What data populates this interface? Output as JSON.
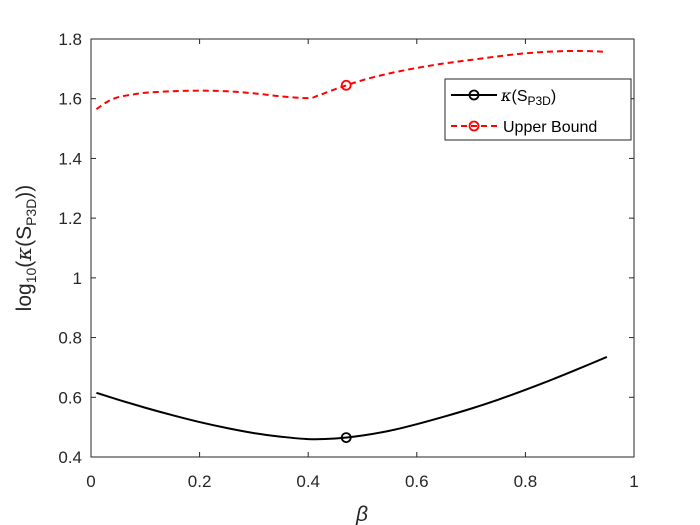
{
  "chart_data": {
    "type": "line",
    "xlabel": "β",
    "ylabel": {
      "prefix": "log",
      "prefix_sub": "10",
      "open": "(",
      "kappa": "κ",
      "inner_open": "(S",
      "inner_sub": "P3D",
      "close": "))"
    },
    "xlim": [
      0,
      1
    ],
    "ylim": [
      0.4,
      1.8
    ],
    "x_ticks": [
      0,
      0.2,
      0.4,
      0.6,
      0.8,
      1
    ],
    "x_tick_labels": [
      "0",
      "0.2",
      "0.4",
      "0.6",
      "0.8",
      "1"
    ],
    "y_ticks": [
      0.4,
      0.6,
      0.8,
      1.0,
      1.2,
      1.4,
      1.6,
      1.8
    ],
    "y_tick_labels": [
      "0.4",
      "0.6",
      "0.8",
      "1",
      "1.2",
      "1.4",
      "1.6",
      "1.8"
    ],
    "grid": false,
    "legend_position": "top-right",
    "series": [
      {
        "key": "kappa",
        "legend": {
          "kappa": "κ",
          "open": "(S",
          "sub": "P3D",
          "close": ")"
        },
        "color": "#000000",
        "style": "solid",
        "x": [
          0.01,
          0.05,
          0.1,
          0.15,
          0.2,
          0.25,
          0.3,
          0.35,
          0.4,
          0.45,
          0.5,
          0.55,
          0.6,
          0.65,
          0.7,
          0.75,
          0.8,
          0.85,
          0.9,
          0.95
        ],
        "y": [
          0.615,
          0.592,
          0.565,
          0.54,
          0.517,
          0.497,
          0.48,
          0.468,
          0.46,
          0.462,
          0.472,
          0.488,
          0.51,
          0.535,
          0.562,
          0.592,
          0.625,
          0.66,
          0.697,
          0.735
        ],
        "marker": {
          "x": 0.47,
          "y": 0.465
        }
      },
      {
        "key": "upper",
        "legend": {
          "text": "Upper Bound"
        },
        "color": "#ff0000",
        "style": "dashed",
        "x": [
          0.01,
          0.03,
          0.05,
          0.08,
          0.1,
          0.15,
          0.2,
          0.25,
          0.3,
          0.35,
          0.4,
          0.42,
          0.45,
          0.5,
          0.55,
          0.6,
          0.65,
          0.7,
          0.75,
          0.8,
          0.85,
          0.9,
          0.95
        ],
        "y": [
          1.565,
          1.59,
          1.605,
          1.615,
          1.62,
          1.625,
          1.627,
          1.625,
          1.618,
          1.608,
          1.602,
          1.612,
          1.632,
          1.662,
          1.685,
          1.703,
          1.718,
          1.73,
          1.742,
          1.752,
          1.758,
          1.76,
          1.757
        ],
        "marker": {
          "x": 0.47,
          "y": 1.645
        }
      }
    ]
  }
}
